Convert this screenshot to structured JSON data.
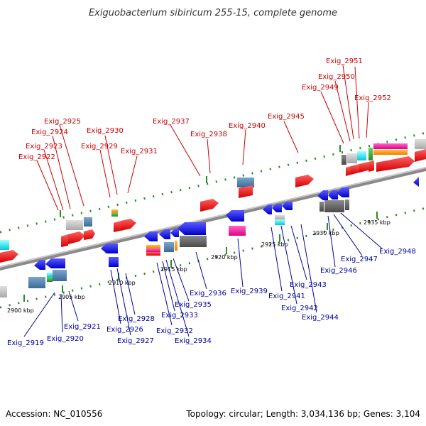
{
  "title": "Exiguobacterium sibiricum 255-15, complete genome",
  "footer": {
    "accession": "Accession: NC_010556",
    "summary": "Topology: circular; Length: 3,034,136 bp; Genes: 3,104"
  },
  "colors": {
    "label_top": "#cc0000",
    "label_bottom": "#000099",
    "axis": "#888888",
    "ticks": "#2a8a2a"
  },
  "kbp_ticks": [
    "2900 kbp",
    "2905 kbp",
    "2910 kbp",
    "2915 kbp",
    "2920 kbp",
    "2925 kbp",
    "2930 kbp",
    "2935 kbp"
  ],
  "top_labels": [
    "Exig_2922",
    "Exig_2923",
    "Exig_2924",
    "Exig_2925",
    "Exig_2929",
    "Exig_2930",
    "Exig_2931",
    "Exig_2937",
    "Exig_2938",
    "Exig_2940",
    "Exig_2945",
    "Exig_2949",
    "Exig_2950",
    "Exig_2951",
    "Exig_2952"
  ],
  "bottom_labels": [
    "Exig_2919",
    "Exig_2920",
    "Exig_2921",
    "Exig_2926",
    "Exig_2927",
    "Exig_2928",
    "Exig_2932",
    "Exig_2933",
    "Exig_2934",
    "Exig_2935",
    "Exig_2936",
    "Exig_2939",
    "Exig_2941",
    "Exig_2942",
    "Exig_2943",
    "Exig_2944",
    "Exig_2946",
    "Exig_2947",
    "Exig_2948"
  ]
}
